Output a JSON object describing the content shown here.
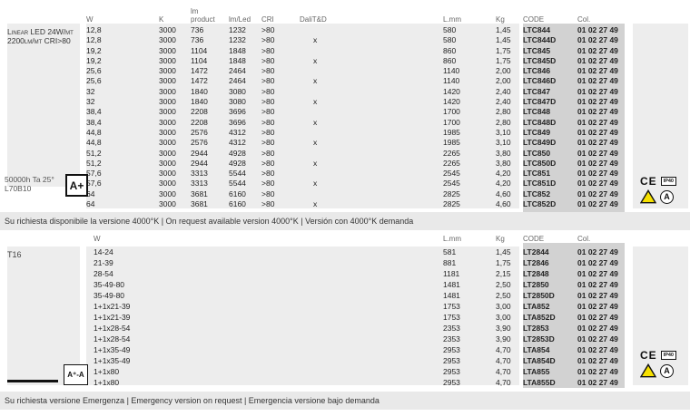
{
  "colors": {
    "panel": "#ededed",
    "band": "#d2d2d2",
    "note_bar": "#e9e9e9",
    "warning_yellow": "#f7e100"
  },
  "table1": {
    "side": {
      "title_line1": "Linear LED 24W/mt",
      "title_line2": "2200lm/mt CRI>80",
      "lifetime_line1": "50000h Ta 25°",
      "lifetime_line2": "L70B10",
      "energy_badge": "A+"
    },
    "headers": {
      "w": "W",
      "k": "K",
      "lm_product_1": "lm",
      "lm_product_2": "product",
      "lm_led": "lm/Led",
      "cri": "CRI",
      "dali": "DaliT&D",
      "l_mm": "L.mm",
      "kg": "Kg",
      "code": "CODE",
      "col": "Col."
    },
    "rows": [
      [
        "12,8",
        "3000",
        "736",
        "1232",
        ">80",
        "",
        "580",
        "1,45",
        "LTC844",
        "01 02 27 49"
      ],
      [
        "12,8",
        "3000",
        "736",
        "1232",
        ">80",
        "x",
        "580",
        "1,45",
        "LTC844D",
        "01 02 27 49"
      ],
      [
        "19,2",
        "3000",
        "1104",
        "1848",
        ">80",
        "",
        "860",
        "1,75",
        "LTC845",
        "01 02 27 49"
      ],
      [
        "19,2",
        "3000",
        "1104",
        "1848",
        ">80",
        "x",
        "860",
        "1,75",
        "LTC845D",
        "01 02 27 49"
      ],
      [
        "25,6",
        "3000",
        "1472",
        "2464",
        ">80",
        "",
        "1140",
        "2,00",
        "LTC846",
        "01 02 27 49"
      ],
      [
        "25,6",
        "3000",
        "1472",
        "2464",
        ">80",
        "x",
        "1140",
        "2,00",
        "LTC846D",
        "01 02 27 49"
      ],
      [
        "32",
        "3000",
        "1840",
        "3080",
        ">80",
        "",
        "1420",
        "2,40",
        "LTC847",
        "01 02 27 49"
      ],
      [
        "32",
        "3000",
        "1840",
        "3080",
        ">80",
        "x",
        "1420",
        "2,40",
        "LTC847D",
        "01 02 27 49"
      ],
      [
        "38,4",
        "3000",
        "2208",
        "3696",
        ">80",
        "",
        "1700",
        "2,80",
        "LTC848",
        "01 02 27 49"
      ],
      [
        "38,4",
        "3000",
        "2208",
        "3696",
        ">80",
        "x",
        "1700",
        "2,80",
        "LTC848D",
        "01 02 27 49"
      ],
      [
        "44,8",
        "3000",
        "2576",
        "4312",
        ">80",
        "",
        "1985",
        "3,10",
        "LTC849",
        "01 02 27 49"
      ],
      [
        "44,8",
        "3000",
        "2576",
        "4312",
        ">80",
        "x",
        "1985",
        "3,10",
        "LTC849D",
        "01 02 27 49"
      ],
      [
        "51,2",
        "3000",
        "2944",
        "4928",
        ">80",
        "",
        "2265",
        "3,80",
        "LTC850",
        "01 02 27 49"
      ],
      [
        "51,2",
        "3000",
        "2944",
        "4928",
        ">80",
        "x",
        "2265",
        "3,80",
        "LTC850D",
        "01 02 27 49"
      ],
      [
        "57,6",
        "3000",
        "3313",
        "5544",
        ">80",
        "",
        "2545",
        "4,20",
        "LTC851",
        "01 02 27 49"
      ],
      [
        "57,6",
        "3000",
        "3313",
        "5544",
        ">80",
        "x",
        "2545",
        "4,20",
        "LTC851D",
        "01 02 27 49"
      ],
      [
        "64",
        "3000",
        "3681",
        "6160",
        ">80",
        "",
        "2825",
        "4,60",
        "LTC852",
        "01 02 27 49"
      ],
      [
        "64",
        "3000",
        "3681",
        "6160",
        ">80",
        "x",
        "2825",
        "4,60",
        "LTC852D",
        "01 02 27 49"
      ]
    ]
  },
  "note1": "Su richiesta disponibile la versione 4000°K | On request available version 4000°K | Versión con 4000°K demanda",
  "table2": {
    "side": {
      "title": "T16",
      "energy_badge": "A⁺-A"
    },
    "headers": {
      "w": "W",
      "l_mm": "L.mm",
      "kg": "Kg",
      "code": "CODE",
      "col": "Col."
    },
    "rows": [
      [
        "14-24",
        "581",
        "1,45",
        "LT2844",
        "01 02 27 49"
      ],
      [
        "21-39",
        "881",
        "1,75",
        "LT2846",
        "01 02 27 49"
      ],
      [
        "28-54",
        "1181",
        "2,15",
        "LT2848",
        "01 02 27 49"
      ],
      [
        "35-49-80",
        "1481",
        "2,50",
        "LT2850",
        "01 02 27 49"
      ],
      [
        "35-49-80",
        "1481",
        "2,50",
        "LT2850D",
        "01 02 27 49"
      ],
      [
        "1+1x21-39",
        "1753",
        "3,00",
        "LTA852",
        "01 02 27 49"
      ],
      [
        "1+1x21-39",
        "1753",
        "3,00",
        "LTA852D",
        "01 02 27 49"
      ],
      [
        "1+1x28-54",
        "2353",
        "3,90",
        "LT2853",
        "01 02 27 49"
      ],
      [
        "1+1x28-54",
        "2353",
        "3,90",
        "LT2853D",
        "01 02 27 49"
      ],
      [
        "1+1x35-49",
        "2953",
        "4,70",
        "LTA854",
        "01 02 27 49"
      ],
      [
        "1+1x35-49",
        "2953",
        "4,70",
        "LTA854D",
        "01 02 27 49"
      ],
      [
        "1+1x80",
        "2953",
        "4,70",
        "LTA855",
        "01 02 27 49"
      ],
      [
        "1+1x80",
        "2953",
        "4,70",
        "LTA855D",
        "01 02 27 49"
      ]
    ]
  },
  "note2": "Su richiesta versione Emergenza | Emergency version on request | Emergencia versione bajo demanda",
  "icons": {
    "ce": "CE",
    "ip": "IP40",
    "circle_a": "A"
  }
}
